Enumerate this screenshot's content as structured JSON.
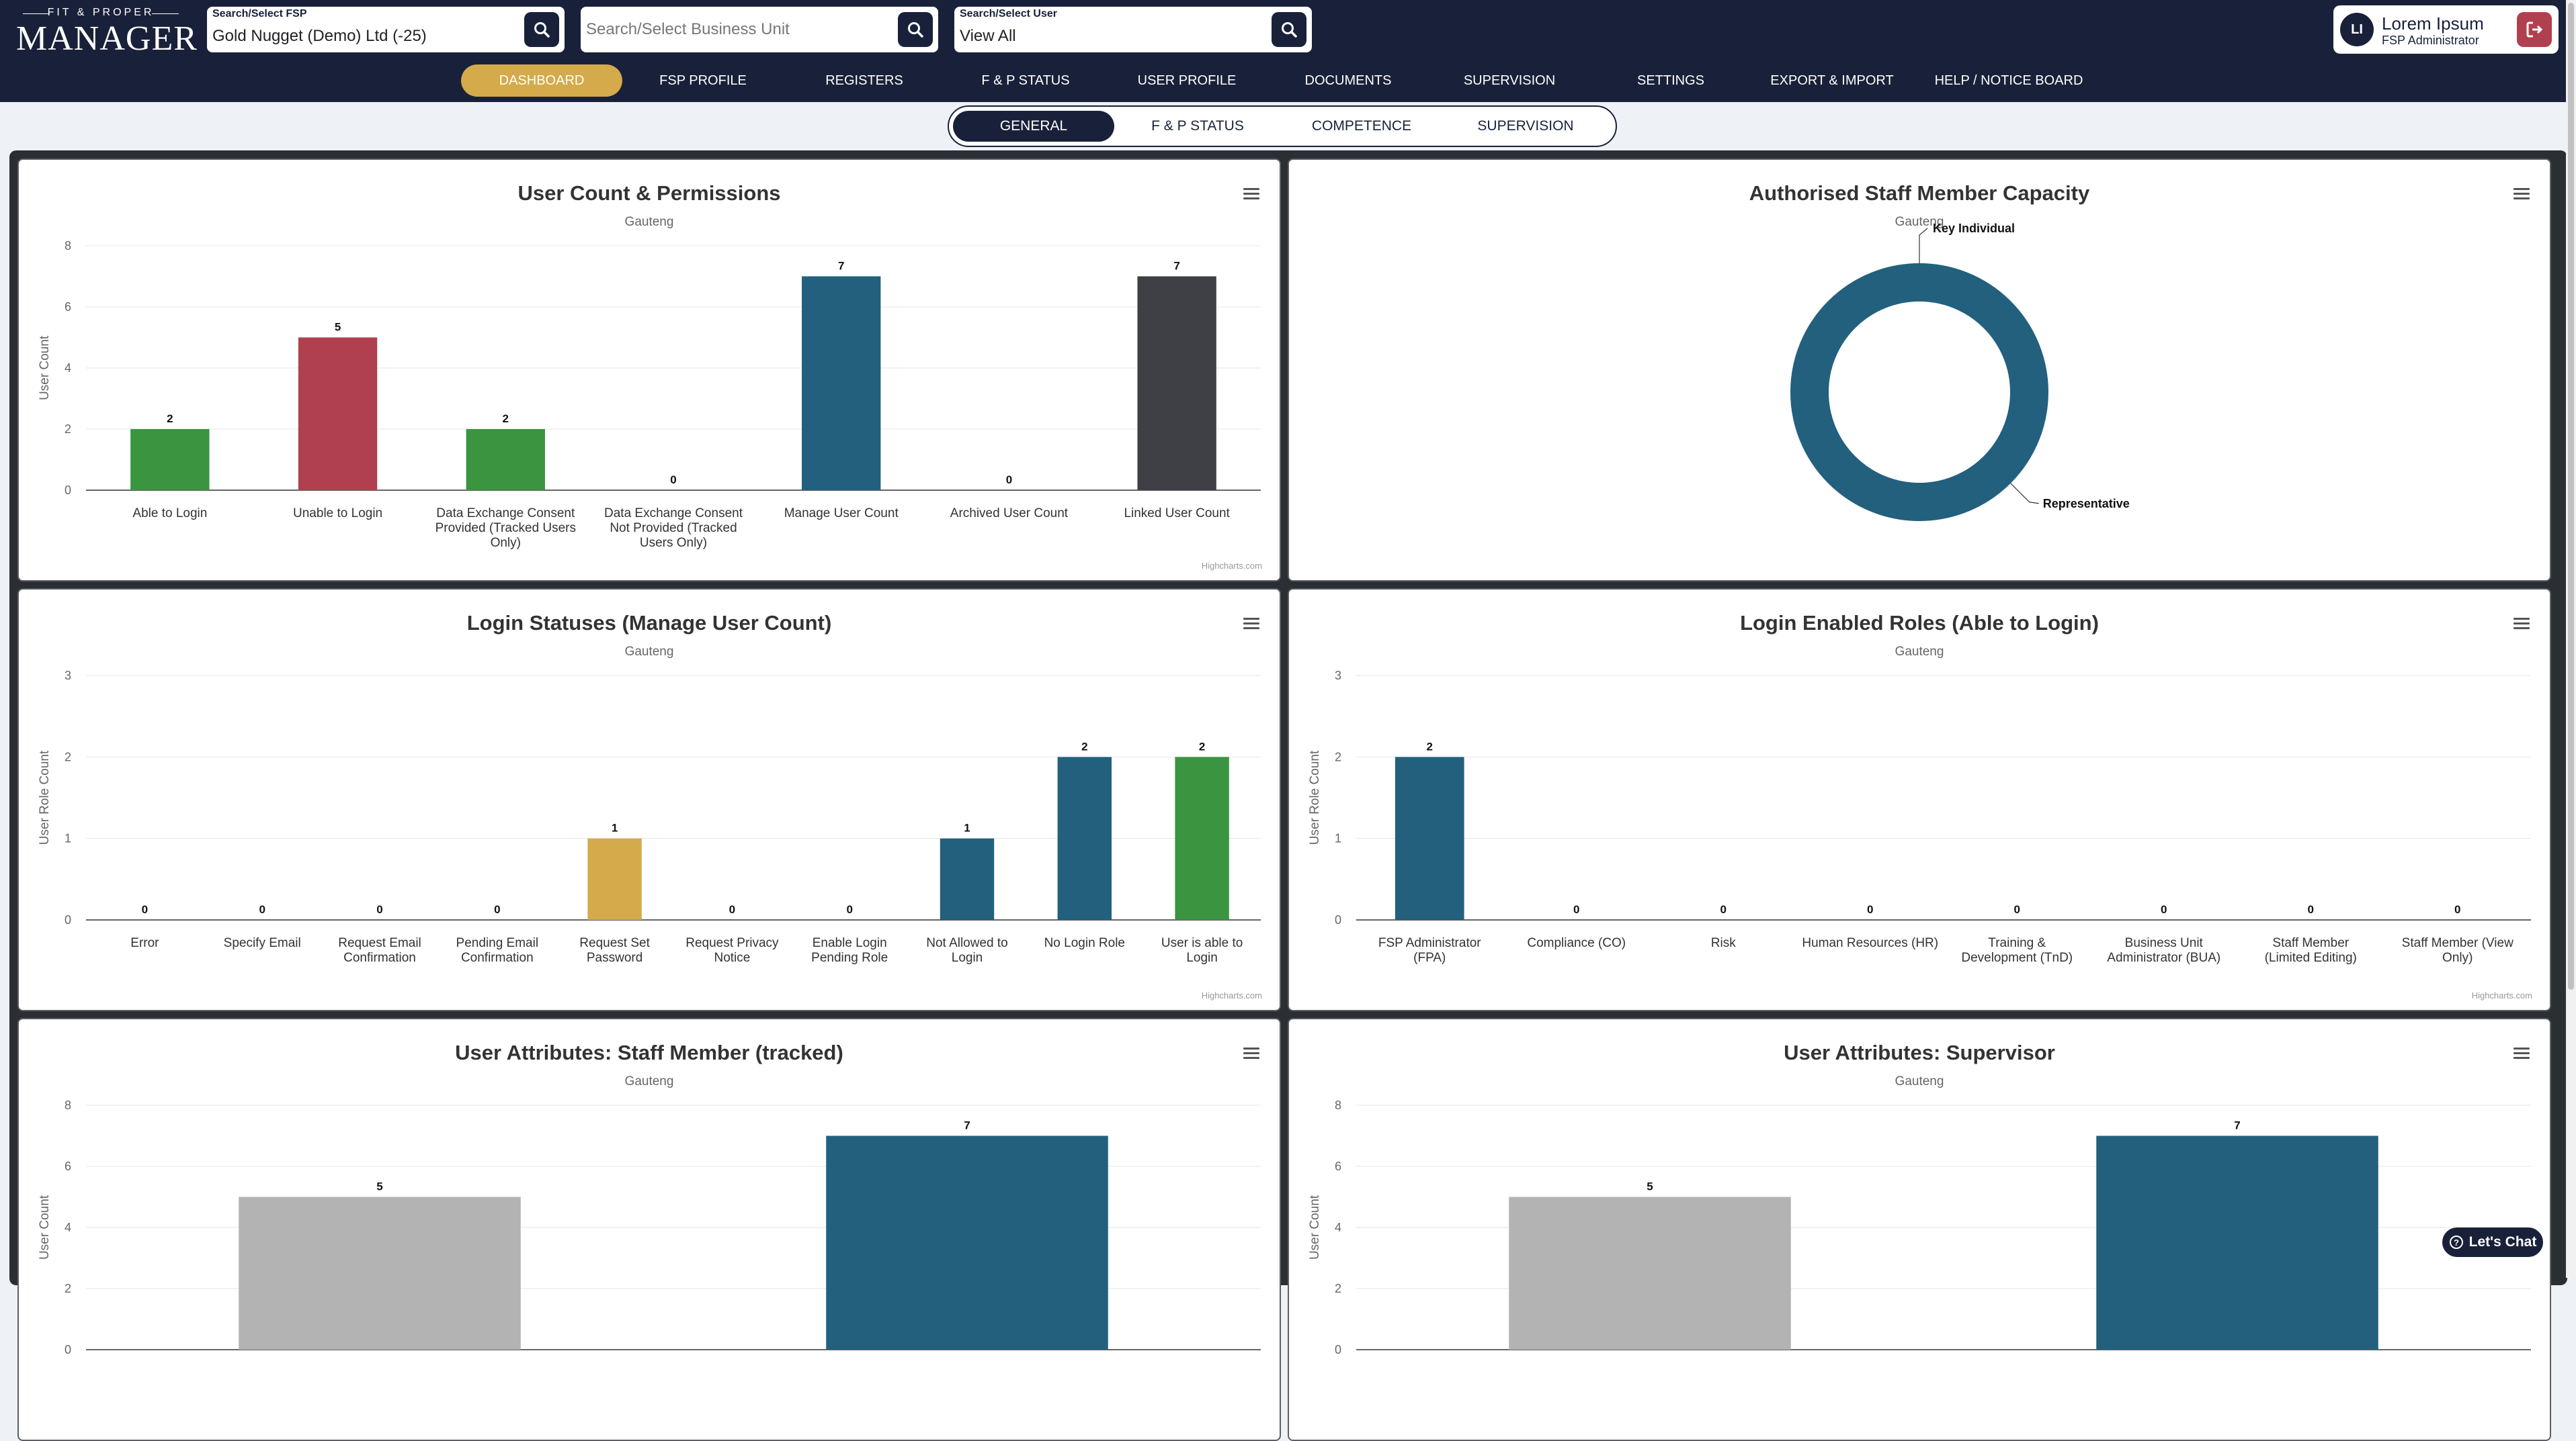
{
  "logo": {
    "small": "FIT & PROPER",
    "big": "MANAGER"
  },
  "search_fsp": {
    "label": "Search/Select FSP",
    "value": "Gold Nugget (Demo) Ltd (-25)"
  },
  "search_bu": {
    "label": "",
    "placeholder": "Search/Select Business Unit"
  },
  "search_user": {
    "label": "Search/Select User",
    "value": "View All"
  },
  "user": {
    "initials": "LI",
    "name": "Lorem Ipsum",
    "role": "FSP Administrator"
  },
  "nav": [
    "DASHBOARD",
    "FSP PROFILE",
    "REGISTERS",
    "F & P STATUS",
    "USER PROFILE",
    "DOCUMENTS",
    "SUPERVISION",
    "SETTINGS",
    "EXPORT & IMPORT",
    "HELP / NOTICE BOARD"
  ],
  "subtabs": [
    "GENERAL",
    "F & P STATUS",
    "COMPETENCE",
    "SUPERVISION"
  ],
  "credit": "Highcharts.com",
  "chat_label": "Let's Chat",
  "colors": {
    "navy": "#19213a",
    "gold": "#d4aa4a",
    "green": "#3a9440",
    "red": "#b0404f",
    "blue": "#22607e",
    "dark": "#3f4045",
    "grey": "#b3b3b3"
  },
  "chart_data": [
    {
      "type": "bar",
      "title": "User Count & Permissions",
      "subtitle": "Gauteng",
      "ylabel": "User Count",
      "ylim": [
        0,
        8
      ],
      "yticks": [
        0,
        2,
        4,
        6,
        8
      ],
      "categories": [
        "Able to Login",
        "Unable to Login",
        "Data Exchange Consent Provided (Tracked Users Only)",
        "Data Exchange Consent Not Provided (Tracked Users Only)",
        "Manage User Count",
        "Archived User Count",
        "Linked User Count"
      ],
      "values": [
        2,
        5,
        2,
        0,
        7,
        0,
        7
      ],
      "colors": [
        "#3a9440",
        "#b0404f",
        "#3a9440",
        "#3a9440",
        "#22607e",
        "#22607e",
        "#3f4045"
      ],
      "grid": true
    },
    {
      "type": "pie",
      "title": "Authorised Staff Member Capacity",
      "subtitle": "Gauteng",
      "slices": [
        {
          "label": "Key Individual",
          "value": 0,
          "color": "#22607e"
        },
        {
          "label": "Representative",
          "value": 7,
          "color": "#22607e"
        }
      ]
    },
    {
      "type": "bar",
      "title": "Login Statuses (Manage User Count)",
      "subtitle": "Gauteng",
      "ylabel": "User Role Count",
      "ylim": [
        0,
        3
      ],
      "yticks": [
        0,
        1,
        2,
        3
      ],
      "categories": [
        "Error",
        "Specify Email",
        "Request Email Confirmation",
        "Pending Email Confirmation",
        "Request Set Password",
        "Request Privacy Notice",
        "Enable Login Pending Role",
        "Not Allowed to Login",
        "No Login Role",
        "User is able to Login"
      ],
      "values": [
        0,
        0,
        0,
        0,
        1,
        0,
        0,
        1,
        2,
        2
      ],
      "colors": [
        "#22607e",
        "#22607e",
        "#22607e",
        "#22607e",
        "#d4aa4a",
        "#22607e",
        "#22607e",
        "#22607e",
        "#22607e",
        "#3a9440"
      ],
      "grid": true
    },
    {
      "type": "bar",
      "title": "Login Enabled Roles (Able to Login)",
      "subtitle": "Gauteng",
      "ylabel": "User Role Count",
      "ylim": [
        0,
        3
      ],
      "yticks": [
        0,
        1,
        2,
        3
      ],
      "categories": [
        "FSP Administrator (FPA)",
        "Compliance (CO)",
        "Risk",
        "Human Resources (HR)",
        "Training & Development (TnD)",
        "Business Unit Administrator (BUA)",
        "Staff Member (Limited Editing)",
        "Staff Member (View Only)"
      ],
      "values": [
        2,
        0,
        0,
        0,
        0,
        0,
        0,
        0
      ],
      "colors": [
        "#22607e",
        "#22607e",
        "#22607e",
        "#22607e",
        "#22607e",
        "#22607e",
        "#22607e",
        "#22607e"
      ],
      "grid": true
    },
    {
      "type": "bar",
      "title": "User Attributes: Staff Member (tracked)",
      "subtitle": "Gauteng",
      "ylabel": "User Count",
      "ylim": [
        0,
        8
      ],
      "yticks": [
        0,
        2,
        4,
        6,
        8
      ],
      "categories": [
        "",
        ""
      ],
      "values": [
        5,
        7
      ],
      "colors": [
        "#b3b3b3",
        "#22607e"
      ],
      "grid": true
    },
    {
      "type": "bar",
      "title": "User Attributes: Supervisor",
      "subtitle": "Gauteng",
      "ylabel": "User Count",
      "ylim": [
        0,
        8
      ],
      "yticks": [
        0,
        2,
        4,
        6,
        8
      ],
      "categories": [
        "",
        ""
      ],
      "values": [
        5,
        7
      ],
      "colors": [
        "#b3b3b3",
        "#22607e"
      ],
      "grid": true
    }
  ]
}
